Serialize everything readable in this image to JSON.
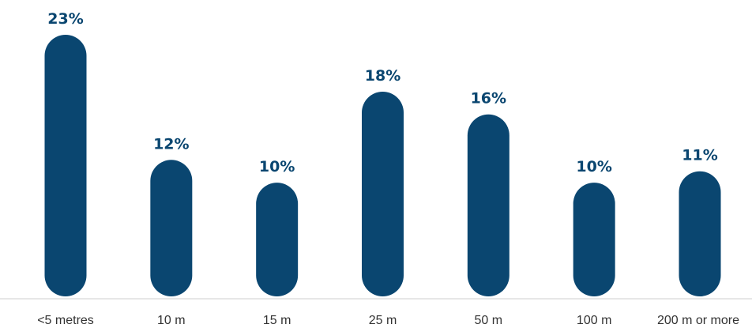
{
  "chart_data": {
    "type": "bar",
    "categories": [
      "<5 metres",
      "10 m",
      "15 m",
      "25 m",
      "50 m",
      "100 m",
      "200 m or more"
    ],
    "values": [
      23,
      12,
      10,
      18,
      16,
      10,
      11
    ],
    "data_labels": [
      "23%",
      "12%",
      "10%",
      "18%",
      "16%",
      "10%",
      "11%"
    ],
    "unit": "%",
    "ylim": [
      0,
      23
    ],
    "grid": false,
    "legend": "none",
    "bar_style": "rounded pill",
    "colors": {
      "bar": "#0a4670",
      "label": "#0a4670",
      "tick_text": "#333333",
      "axis_line": "#cfcfcf"
    }
  }
}
